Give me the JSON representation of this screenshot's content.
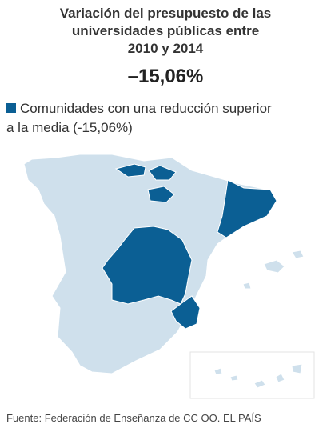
{
  "title": {
    "line1": "Variación del presupuesto de las",
    "line2": "universidades públicas entre",
    "line3": "2010 y 2014"
  },
  "headline_value": "–15,06%",
  "legend": {
    "line1": "Comunidades con una reducción superior",
    "line2": "a la media (-15,06%)",
    "color": "#0b5f94"
  },
  "colors": {
    "highlight": "#0b5f94",
    "other": "#cfe0ec",
    "background": "#ffffff",
    "border": "#ffffff"
  },
  "map": {
    "highlighted_regions": [
      "País Vasco",
      "La Rioja",
      "Cataluña",
      "Castilla-La Mancha",
      "Madrid",
      "Murcia"
    ]
  },
  "source": "Fuente: Federación de Enseñanza de CC OO.   EL PAÍS"
}
